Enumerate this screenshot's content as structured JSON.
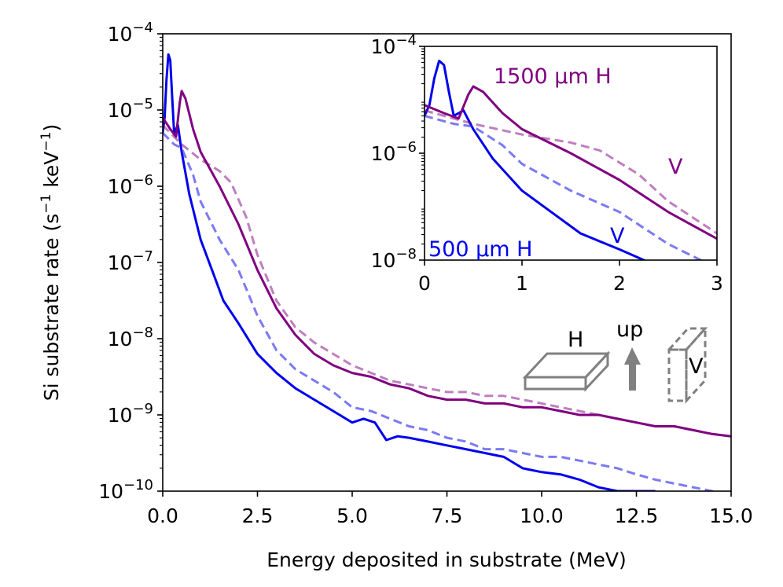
{
  "chart_data": {
    "type": "line",
    "main": {
      "xlabel": "Energy deposited in substrate (MeV)",
      "ylabel": "Si substrate rate (s",
      "ylabel_sup1": "−1",
      "ylabel_mid": " keV",
      "ylabel_sup2": "−1",
      "ylabel_end": ")",
      "xlim": [
        0,
        15
      ],
      "ylim_log10": [
        -10,
        -4
      ],
      "x_ticks": [
        0.0,
        2.5,
        5.0,
        7.5,
        10.0,
        12.5,
        15.0
      ],
      "x_tick_labels": [
        "0.0",
        "2.5",
        "5.0",
        "7.5",
        "10.0",
        "12.5",
        "15.0"
      ],
      "y_ticks_log10": [
        -4,
        -5,
        -6,
        -7,
        -8,
        -9,
        -10
      ],
      "y_tick_base": "10",
      "y_tick_exps": [
        "−4",
        "−5",
        "−6",
        "−7",
        "−8",
        "−9",
        "−10"
      ]
    },
    "series": [
      {
        "name": "500 µm H",
        "color": "#0000ee",
        "dashed": false,
        "alpha": 1.0,
        "x": [
          0,
          0.05,
          0.1,
          0.15,
          0.2,
          0.25,
          0.3,
          0.4,
          0.5,
          0.7,
          1.0,
          1.3,
          1.6,
          2.0,
          2.5,
          3.0,
          3.5,
          4.0,
          4.5,
          5.0,
          5.3,
          5.6,
          5.9,
          6.2,
          6.5,
          7.0,
          7.5,
          8.0,
          8.5,
          9.0,
          9.5,
          10.0,
          10.5,
          11.0,
          11.5,
          12.0,
          12.5,
          13.0
        ],
        "y_log10": [
          -5.3,
          -5.1,
          -4.6,
          -4.27,
          -4.35,
          -4.85,
          -5.3,
          -5.2,
          -5.55,
          -6.1,
          -6.7,
          -7.1,
          -7.5,
          -7.8,
          -8.2,
          -8.45,
          -8.65,
          -8.8,
          -8.95,
          -9.1,
          -9.05,
          -9.1,
          -9.33,
          -9.28,
          -9.3,
          -9.35,
          -9.4,
          -9.45,
          -9.5,
          -9.55,
          -9.7,
          -9.75,
          -9.78,
          -9.85,
          -9.95,
          -10.0,
          -10.0,
          -10.0
        ]
      },
      {
        "name": "500 µm V",
        "color": "#3333ee",
        "dashed": true,
        "alpha": 0.65,
        "x": [
          0,
          0.3,
          0.5,
          0.8,
          1.0,
          1.5,
          2.0,
          2.5,
          3.0,
          3.5,
          4.0,
          4.5,
          5.0,
          5.5,
          6.0,
          6.5,
          7.0,
          7.5,
          8.0,
          8.5,
          9.0,
          9.5,
          10.0,
          10.5,
          11.0,
          11.5,
          12.0,
          12.5,
          13.0,
          13.5,
          14.0,
          15.0
        ],
        "y_log10": [
          -5.3,
          -5.45,
          -5.5,
          -5.85,
          -6.2,
          -6.7,
          -7.1,
          -7.7,
          -8.15,
          -8.4,
          -8.55,
          -8.7,
          -8.9,
          -8.95,
          -9.05,
          -9.15,
          -9.2,
          -9.3,
          -9.35,
          -9.45,
          -9.45,
          -9.5,
          -9.55,
          -9.55,
          -9.6,
          -9.65,
          -9.7,
          -9.78,
          -9.85,
          -9.9,
          -9.95,
          -10.05
        ]
      },
      {
        "name": "1500 µm H",
        "color": "#800080",
        "dashed": false,
        "alpha": 1.0,
        "x": [
          0,
          0.2,
          0.35,
          0.45,
          0.5,
          0.6,
          0.8,
          1.0,
          1.5,
          2.0,
          2.5,
          3.0,
          3.5,
          4.0,
          4.5,
          5.0,
          5.5,
          6.0,
          6.5,
          7.0,
          7.5,
          8.0,
          8.5,
          9.0,
          9.5,
          10.0,
          10.5,
          11.0,
          11.5,
          12.0,
          12.5,
          13.0,
          13.5,
          14.0,
          14.5,
          15.0
        ],
        "y_log10": [
          -5.1,
          -5.25,
          -5.35,
          -4.9,
          -4.75,
          -4.85,
          -5.25,
          -5.55,
          -6.0,
          -6.5,
          -7.1,
          -7.6,
          -7.95,
          -8.2,
          -8.35,
          -8.45,
          -8.5,
          -8.6,
          -8.65,
          -8.75,
          -8.8,
          -8.8,
          -8.85,
          -8.85,
          -8.9,
          -8.9,
          -8.95,
          -9.0,
          -9.0,
          -9.05,
          -9.1,
          -9.15,
          -9.15,
          -9.2,
          -9.25,
          -9.28
        ]
      },
      {
        "name": "1500 µm V",
        "color": "#800080",
        "dashed": true,
        "alpha": 0.5,
        "x": [
          0,
          0.5,
          1.0,
          1.5,
          1.8,
          2.2,
          2.5,
          3.0,
          3.5,
          4.0,
          4.5,
          5.0,
          5.5,
          6.0,
          6.5,
          7.0,
          7.5,
          8.0,
          8.5,
          9.0,
          9.5,
          10.0,
          10.5,
          11.0,
          11.5,
          12.0,
          12.5,
          13.0,
          13.5,
          14.0,
          14.5,
          15.0
        ],
        "y_log10": [
          -5.2,
          -5.45,
          -5.65,
          -5.8,
          -5.95,
          -6.4,
          -6.9,
          -7.5,
          -7.85,
          -8.05,
          -8.2,
          -8.35,
          -8.45,
          -8.55,
          -8.6,
          -8.65,
          -8.7,
          -8.7,
          -8.75,
          -8.75,
          -8.8,
          -8.85,
          -8.9,
          -8.95,
          -9.0,
          -9.05,
          -9.1,
          -9.15,
          -9.15,
          -9.2,
          -9.25,
          -9.28
        ]
      }
    ],
    "inset": {
      "xlim": [
        0,
        3
      ],
      "ylim_log10": [
        -8,
        -4
      ],
      "x_ticks": [
        0,
        1,
        2,
        3
      ],
      "x_tick_labels": [
        "0",
        "1",
        "2",
        "3"
      ],
      "y_ticks_log10": [
        -4,
        -6,
        -8
      ],
      "y_tick_base": "10",
      "y_tick_exps": [
        "−4",
        "−6",
        "−8"
      ],
      "annotations": {
        "h1500": "1500 µm H",
        "v1500": "V",
        "h500": "500 µm H",
        "v500": "V"
      }
    },
    "legend_icons": {
      "horizontal_label": "H",
      "up_label": "up",
      "vertical_label": "V"
    }
  }
}
